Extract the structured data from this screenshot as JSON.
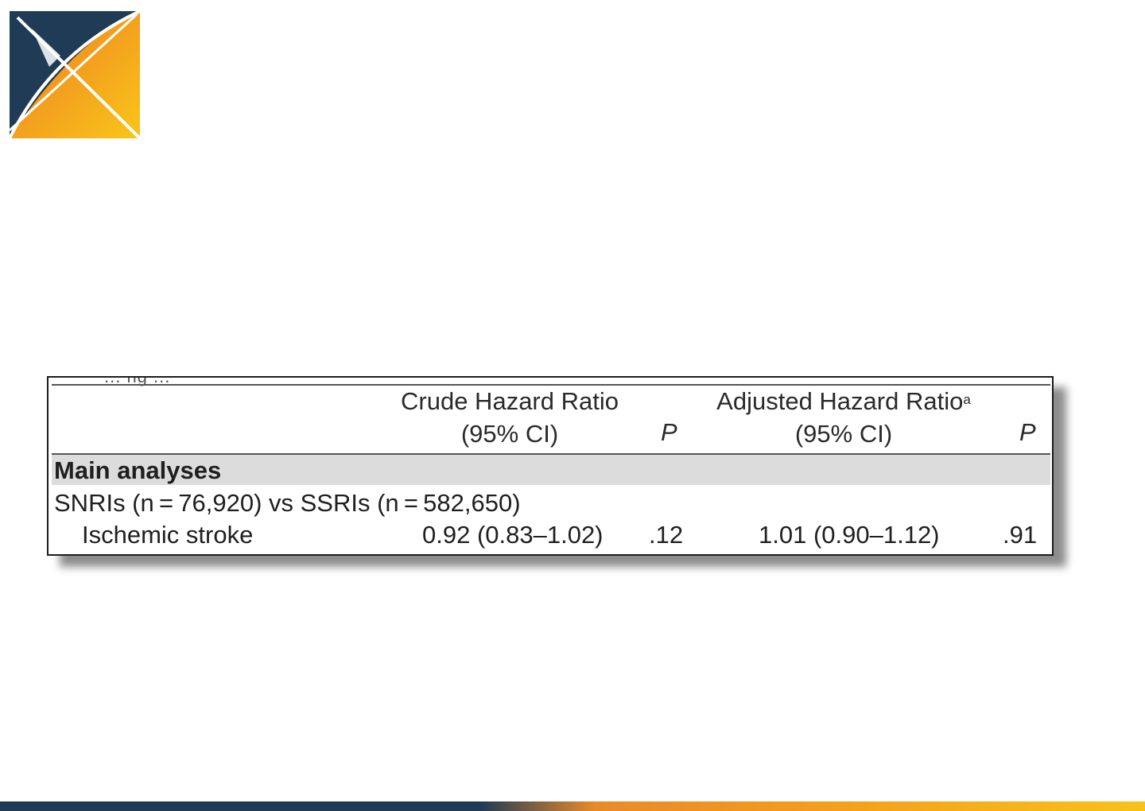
{
  "table": {
    "clipped_caption": "... ng ...",
    "header": {
      "crude_line1": "Crude Hazard Ratio",
      "crude_line2": "(95% CI)",
      "p_label": "P",
      "adjusted_line1": "Adjusted Hazard Ratio",
      "adjusted_superscript": "a",
      "adjusted_line2": "(95% CI)",
      "p_label_2": "P"
    },
    "section_label": "Main analyses",
    "comparison_label": "SNRIs (n = 76,920) vs SSRIs (n = 582,650)",
    "rows": [
      {
        "outcome": "Ischemic stroke",
        "crude_hr": "0.92 (0.83–1.02)",
        "crude_p": ".12",
        "adjusted_hr": "1.01 (0.90–1.12)",
        "adjusted_p": ".91"
      }
    ]
  },
  "colors": {
    "logo_navy": "#1f3b55",
    "logo_orange": "#f08a24",
    "logo_yellow": "#f9c11b",
    "band_gray": "#dcdcdc"
  }
}
